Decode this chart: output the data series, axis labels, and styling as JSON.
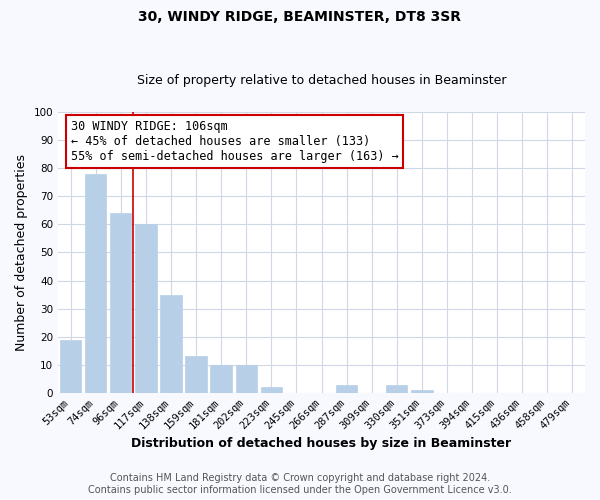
{
  "title": "30, WINDY RIDGE, BEAMINSTER, DT8 3SR",
  "subtitle": "Size of property relative to detached houses in Beaminster",
  "xlabel": "Distribution of detached houses by size in Beaminster",
  "ylabel": "Number of detached properties",
  "categories": [
    "53sqm",
    "74sqm",
    "96sqm",
    "117sqm",
    "138sqm",
    "159sqm",
    "181sqm",
    "202sqm",
    "223sqm",
    "245sqm",
    "266sqm",
    "287sqm",
    "309sqm",
    "330sqm",
    "351sqm",
    "373sqm",
    "394sqm",
    "415sqm",
    "436sqm",
    "458sqm",
    "479sqm"
  ],
  "values": [
    19,
    78,
    64,
    60,
    35,
    13,
    10,
    10,
    2,
    0,
    0,
    3,
    0,
    3,
    1,
    0,
    0,
    0,
    0,
    0,
    0
  ],
  "bar_color": "#b8cfe8",
  "bar_edge_color": "#b8cfe8",
  "ylim": [
    0,
    100
  ],
  "yticks": [
    0,
    10,
    20,
    30,
    40,
    50,
    60,
    70,
    80,
    90,
    100
  ],
  "annotation_title": "30 WINDY RIDGE: 106sqm",
  "annotation_line1": "← 45% of detached houses are smaller (133)",
  "annotation_line2": "55% of semi-detached houses are larger (163) →",
  "annotation_box_color": "#ffffff",
  "annotation_box_edge": "#cc0000",
  "red_line_color": "#cc0000",
  "footer1": "Contains HM Land Registry data © Crown copyright and database right 2024.",
  "footer2": "Contains public sector information licensed under the Open Government Licence v3.0.",
  "plot_bg_color": "#ffffff",
  "fig_bg_color": "#f8f9ff",
  "grid_color": "#d0d8e8",
  "title_fontsize": 10,
  "subtitle_fontsize": 9,
  "axis_label_fontsize": 9,
  "tick_fontsize": 7.5,
  "footer_fontsize": 7,
  "annotation_fontsize": 8.5
}
